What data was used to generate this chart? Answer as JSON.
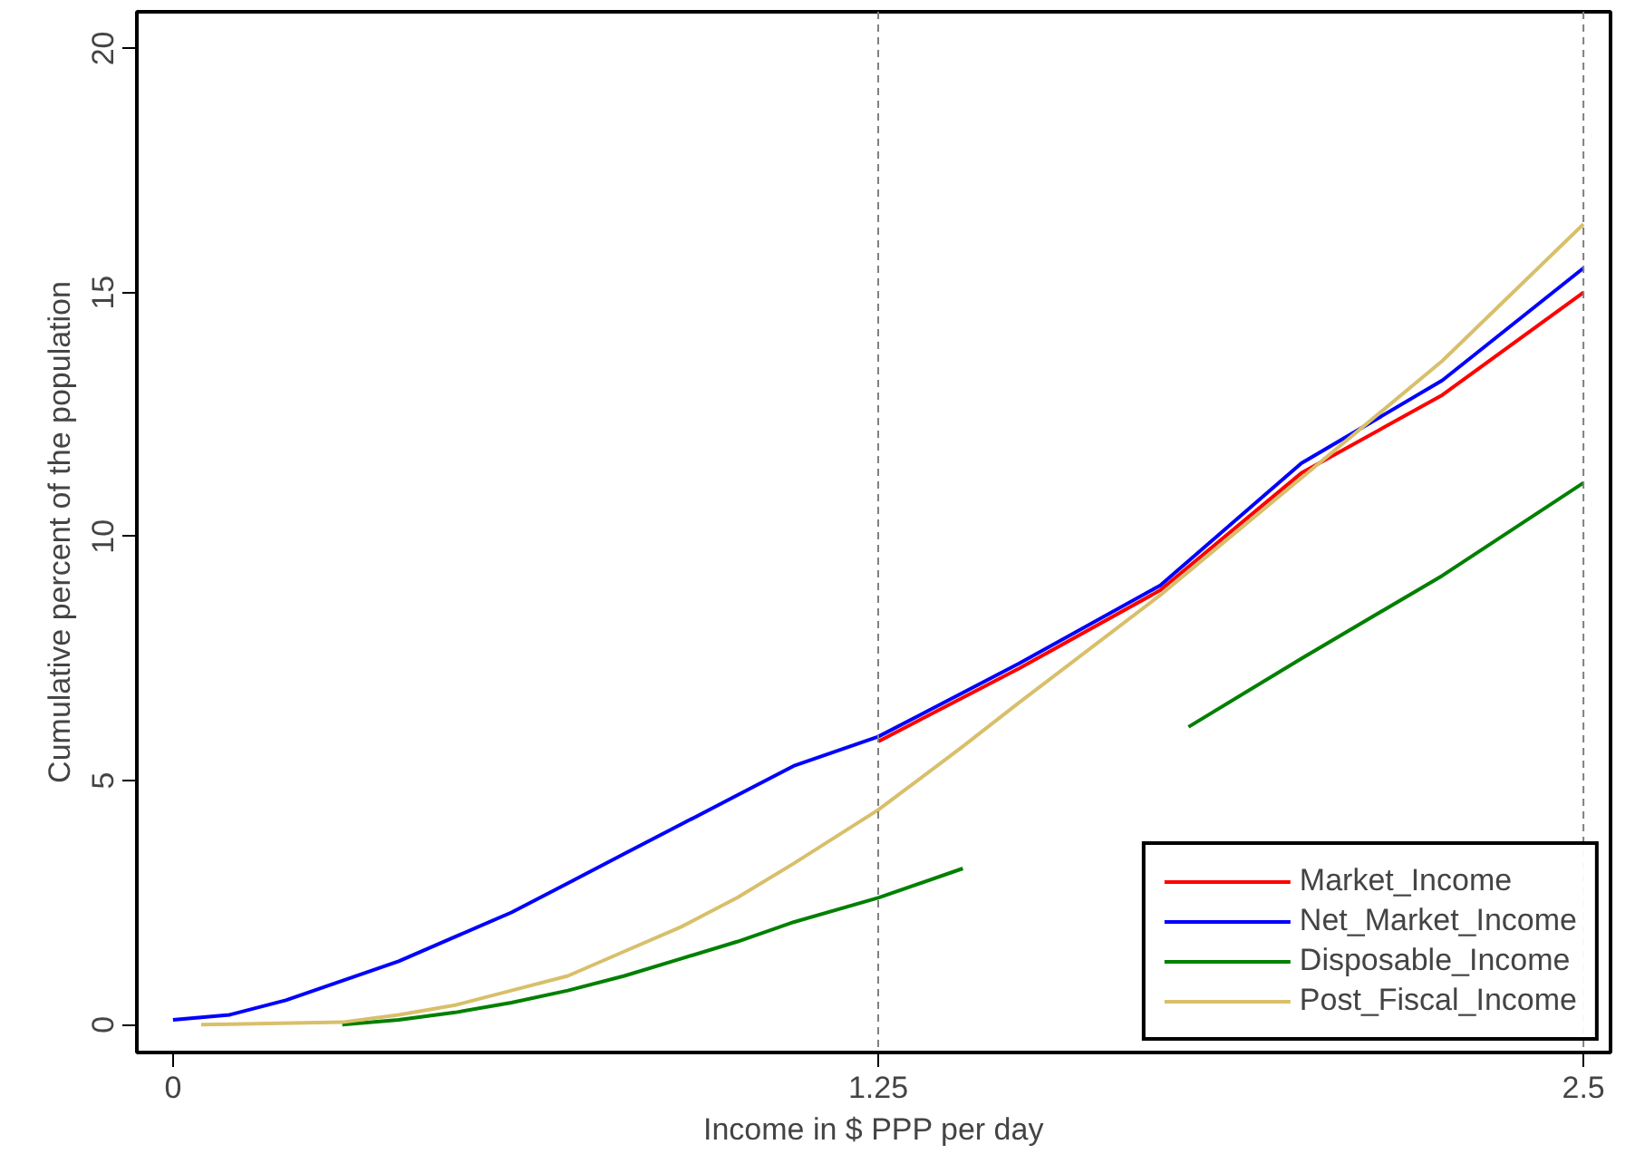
{
  "chart_data": {
    "type": "line",
    "xlabel": "Income in $ PPP per day",
    "ylabel": "Cumulative percent of the population",
    "xlim": [
      -0.064,
      2.548
    ],
    "ylim": [
      -0.57,
      20.75
    ],
    "xticks": [
      0,
      1.25,
      2.5
    ],
    "yticks": [
      0,
      5,
      10,
      15,
      20
    ],
    "grid": false,
    "legend": "bottom right",
    "line_style": "solid",
    "marker": "none",
    "series": [
      {
        "name": "Market_Income",
        "color": "#ff0000",
        "x": [
          1.25,
          1.5,
          1.75,
          2.0,
          2.25,
          2.5
        ],
        "values": [
          5.8,
          7.3,
          8.9,
          11.3,
          12.9,
          15.0
        ]
      },
      {
        "name": "Net_Market_Income",
        "color": "#0000ff",
        "x": [
          0,
          0.1,
          0.2,
          0.3,
          0.4,
          0.5,
          0.6,
          0.7,
          0.8,
          0.9,
          1.0,
          1.1,
          1.25,
          1.5,
          1.75,
          2.0,
          2.25,
          2.5
        ],
        "values": [
          0.1,
          0.2,
          0.5,
          0.9,
          1.3,
          1.8,
          2.3,
          2.9,
          3.5,
          4.1,
          4.7,
          5.3,
          5.9,
          7.4,
          9.0,
          11.5,
          13.2,
          15.5
        ]
      },
      {
        "name": "Disposable_Income",
        "color": "#008000",
        "x": [
          0.3,
          0.4,
          0.5,
          0.6,
          0.7,
          0.8,
          0.9,
          1.0,
          1.1,
          1.25,
          1.4,
          1.5,
          1.6,
          1.7,
          1.8,
          2.0,
          2.25,
          2.5
        ],
        "values": [
          0.0,
          0.1,
          0.25,
          0.45,
          0.7,
          1.0,
          1.35,
          1.7,
          2.1,
          2.6,
          3.2,
          null,
          null,
          null,
          6.1,
          7.5,
          9.2,
          11.1
        ]
      },
      {
        "name": "Post_Fiscal_Income",
        "color": "#d8bf6a",
        "x": [
          0.05,
          0.3,
          0.4,
          0.5,
          0.6,
          0.7,
          0.8,
          0.9,
          1.0,
          1.1,
          1.25,
          1.4,
          1.5,
          1.75,
          2.0,
          2.25,
          2.5
        ],
        "values": [
          0.0,
          0.05,
          0.2,
          0.4,
          0.7,
          1.0,
          1.5,
          2.0,
          2.6,
          3.3,
          4.4,
          5.7,
          6.6,
          8.8,
          11.2,
          13.6,
          16.4
        ]
      }
    ],
    "ref_lines": [
      {
        "axis": "x",
        "value": 1.25,
        "color": "#808080",
        "line_style": "dashed"
      },
      {
        "axis": "x",
        "value": 2.5,
        "color": "#808080",
        "line_style": "dashed"
      }
    ]
  }
}
